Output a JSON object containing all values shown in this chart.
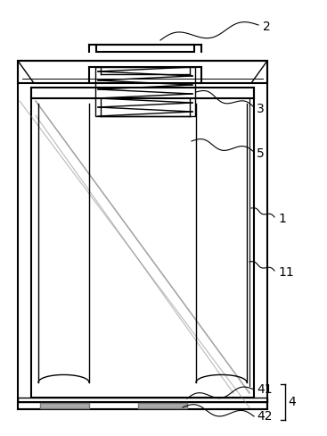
{
  "bg_color": "#ffffff",
  "line_color": "#000000",
  "gray_color": "#777777",
  "light_gray": "#aaaaaa",
  "figsize": [
    3.67,
    4.88
  ],
  "dpi": 100,
  "lw": 1.0,
  "lw_thick": 1.5
}
